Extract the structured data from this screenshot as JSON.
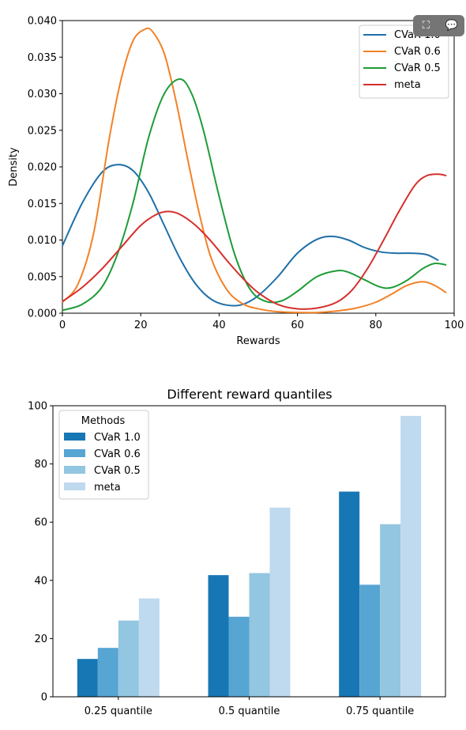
{
  "toolbar": {
    "expand_icon": "expand-icon",
    "comment_icon": "comment-icon"
  },
  "chart_data": [
    {
      "type": "line",
      "xlabel": "Rewards",
      "ylabel": "Density",
      "xlim": [
        0,
        100
      ],
      "ylim": [
        0,
        0.04
      ],
      "xticks": [
        "0",
        "20",
        "40",
        "60",
        "80",
        "100"
      ],
      "yticks": [
        "0.000",
        "0.005",
        "0.010",
        "0.015",
        "0.020",
        "0.025",
        "0.030",
        "0.035",
        "0.040"
      ],
      "legend": "top-right",
      "series": [
        {
          "name": "CVaR 1.0",
          "color": "#1f6fa8",
          "x": [
            0,
            5,
            10,
            14,
            18,
            22,
            26,
            30,
            34,
            38,
            42,
            46,
            50,
            55,
            60,
            65,
            69,
            73,
            77,
            81,
            85,
            89,
            93,
            96
          ],
          "y": [
            0.0092,
            0.015,
            0.0192,
            0.0203,
            0.0195,
            0.0165,
            0.012,
            0.0075,
            0.004,
            0.0019,
            0.0011,
            0.0012,
            0.0024,
            0.005,
            0.0082,
            0.0101,
            0.0105,
            0.01,
            0.009,
            0.0084,
            0.0082,
            0.0082,
            0.008,
            0.0072
          ]
        },
        {
          "name": "CVaR 0.6",
          "color": "#f28228",
          "x": [
            0,
            4,
            8,
            12,
            15,
            18,
            21,
            23,
            26,
            29,
            32,
            35,
            38,
            42,
            46,
            50,
            55,
            60,
            65,
            70,
            75,
            80,
            84,
            88,
            92,
            95,
            98
          ],
          "y": [
            0.0015,
            0.004,
            0.011,
            0.024,
            0.032,
            0.0372,
            0.0388,
            0.0385,
            0.0355,
            0.029,
            0.021,
            0.0135,
            0.0075,
            0.0032,
            0.0013,
            0.0006,
            0.0002,
            0.0001,
            0.0001,
            0.0003,
            0.0007,
            0.0015,
            0.0026,
            0.0038,
            0.0043,
            0.0038,
            0.0028
          ]
        },
        {
          "name": "CVaR 0.5",
          "color": "#1e9c37",
          "x": [
            0,
            5,
            10,
            14,
            18,
            22,
            26,
            30,
            33,
            36,
            40,
            44,
            48,
            52,
            56,
            60,
            65,
            70,
            73,
            77,
            81,
            84,
            88,
            92,
            95,
            98
          ],
          "y": [
            0.0004,
            0.0012,
            0.0035,
            0.008,
            0.015,
            0.024,
            0.03,
            0.032,
            0.03,
            0.025,
            0.016,
            0.008,
            0.0032,
            0.0016,
            0.0017,
            0.003,
            0.005,
            0.0058,
            0.0056,
            0.0046,
            0.0036,
            0.0035,
            0.0045,
            0.0061,
            0.0068,
            0.0066
          ]
        },
        {
          "name": "meta",
          "color": "#d52f2c",
          "x": [
            0,
            5,
            10,
            15,
            20,
            24,
            27,
            30,
            34,
            38,
            42,
            46,
            50,
            55,
            60,
            65,
            70,
            74,
            78,
            82,
            86,
            90,
            93,
            96,
            98
          ],
          "y": [
            0.0016,
            0.0035,
            0.006,
            0.009,
            0.012,
            0.0135,
            0.0139,
            0.0135,
            0.012,
            0.0098,
            0.0072,
            0.0048,
            0.0028,
            0.0012,
            0.0006,
            0.0007,
            0.0015,
            0.0032,
            0.0062,
            0.01,
            0.014,
            0.0175,
            0.0188,
            0.019,
            0.0188
          ]
        }
      ]
    },
    {
      "type": "bar",
      "title": "Different reward quantiles",
      "categories": [
        "0.25 quantile",
        "0.5 quantile",
        "0.75 quantile"
      ],
      "ylim": [
        0,
        100
      ],
      "yticks": [
        "0",
        "20",
        "40",
        "60",
        "80",
        "100"
      ],
      "legend_title": "Methods",
      "legend": "top-left",
      "series": [
        {
          "name": "CVaR 1.0",
          "color": "#1777b4",
          "values": [
            13,
            41.8,
            70.5
          ]
        },
        {
          "name": "CVaR 0.6",
          "color": "#57a5d3",
          "values": [
            16.8,
            27.5,
            38.5
          ]
        },
        {
          "name": "CVaR 0.5",
          "color": "#93c6e0",
          "values": [
            26.2,
            42.5,
            59.3
          ]
        },
        {
          "name": "meta",
          "color": "#bfd9ee",
          "values": [
            33.8,
            65,
            96.5
          ]
        }
      ]
    }
  ]
}
